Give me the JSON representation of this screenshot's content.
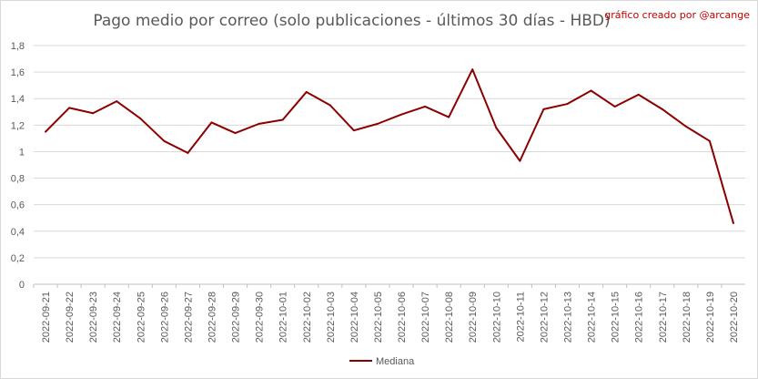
{
  "chart_data": {
    "type": "line",
    "title": "Pago medio por correo (solo publicaciones - últimos 30 días - HBD)",
    "credit": "gráfico creado por @arcange",
    "xlabel": "",
    "ylabel": "",
    "ylim": [
      0,
      1.8
    ],
    "yticks": [
      "0",
      "0,2",
      "0,4",
      "0,6",
      "0,8",
      "1",
      "1,2",
      "1,4",
      "1,6",
      "1,8"
    ],
    "grid": true,
    "legend_position": "bottom",
    "categories": [
      "2022-09-21",
      "2022-09-22",
      "2022-09-23",
      "2022-09-24",
      "2022-09-25",
      "2022-09-26",
      "2022-09-27",
      "2022-09-28",
      "2022-09-29",
      "2022-09-30",
      "2022-10-01",
      "2022-10-02",
      "2022-10-03",
      "2022-10-04",
      "2022-10-05",
      "2022-10-06",
      "2022-10-07",
      "2022-10-08",
      "2022-10-09",
      "2022-10-10",
      "2022-10-11",
      "2022-10-12",
      "2022-10-13",
      "2022-10-14",
      "2022-10-15",
      "2022-10-16",
      "2022-10-17",
      "2022-10-18",
      "2022-10-19",
      "2022-10-20"
    ],
    "series": [
      {
        "name": "Mediana",
        "color": "#8b0000",
        "values": [
          1.15,
          1.33,
          1.29,
          1.38,
          1.25,
          1.08,
          0.99,
          1.22,
          1.14,
          1.21,
          1.24,
          1.45,
          1.35,
          1.16,
          1.21,
          1.28,
          1.34,
          1.26,
          1.62,
          1.18,
          0.93,
          1.32,
          1.36,
          1.46,
          1.34,
          1.43,
          1.32,
          1.19,
          1.08,
          0.46
        ]
      }
    ]
  }
}
